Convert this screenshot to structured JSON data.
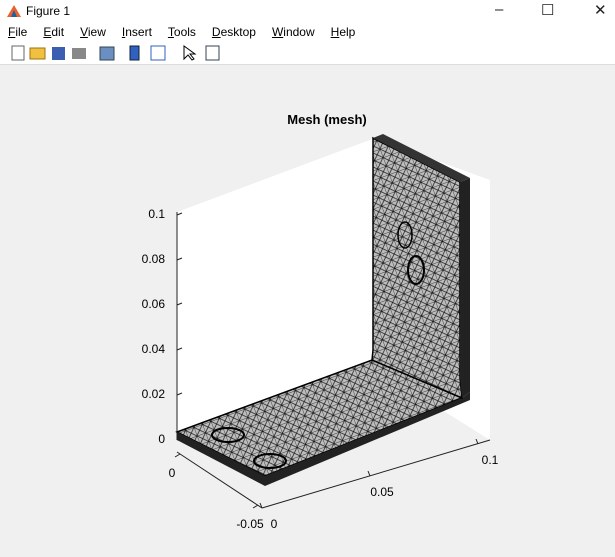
{
  "window": {
    "title": "Figure 1"
  },
  "menu": [
    "File",
    "Edit",
    "View",
    "Insert",
    "Tools",
    "Desktop",
    "Window",
    "Help"
  ],
  "axes": {
    "title": "Mesh (mesh)",
    "zticks": [
      0,
      0.02,
      0.04,
      0.06,
      0.08,
      0.1
    ],
    "yticks": [
      -0.05,
      0
    ],
    "xticks": [
      0,
      0.05,
      0.1
    ]
  }
}
